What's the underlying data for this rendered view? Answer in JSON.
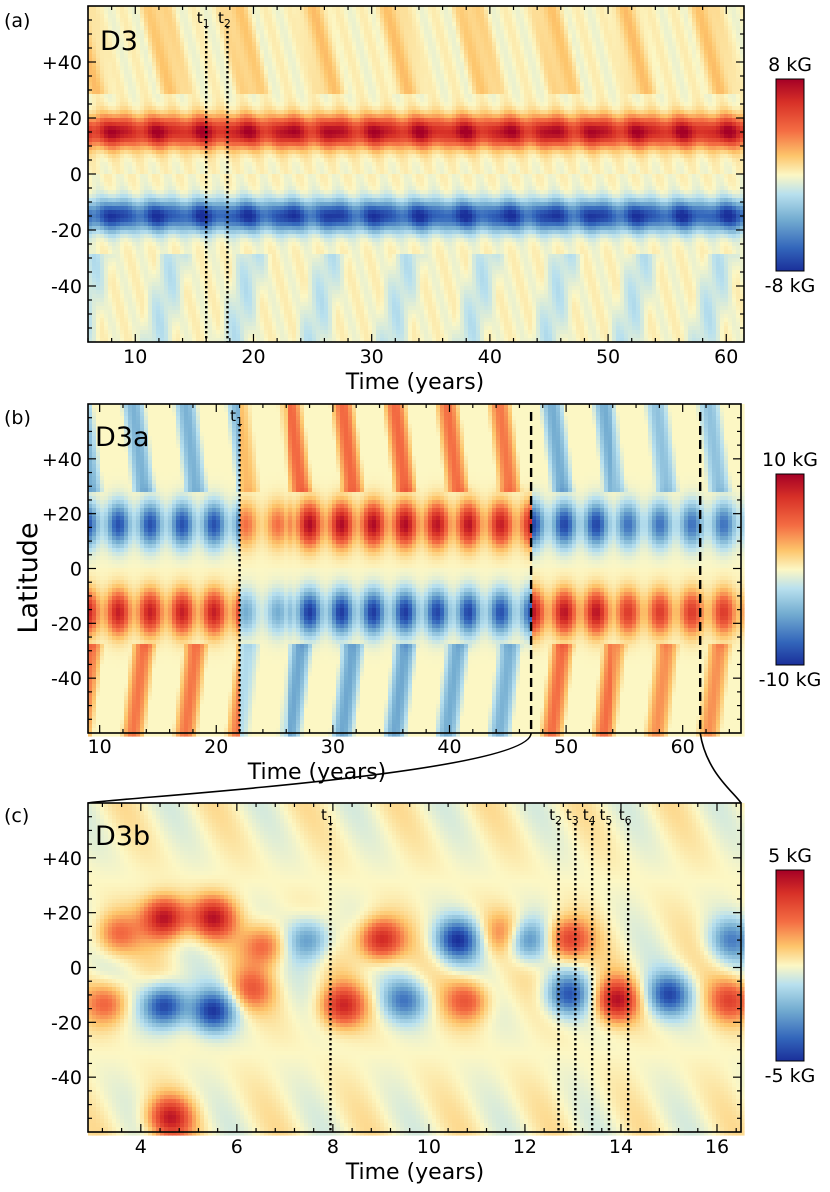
{
  "figure": {
    "ylabel": "Latitude"
  },
  "chart_data": [
    {
      "type": "heatmap",
      "panel_label": "(a)",
      "title": "D3",
      "xlabel": "Time (years)",
      "ylabel": "Latitude",
      "xlim": [
        6,
        61.5
      ],
      "ylim": [
        -60,
        60
      ],
      "xticks": [
        10,
        20,
        30,
        40,
        50,
        60
      ],
      "xtick_labels": [
        "10",
        "20",
        "30",
        "40",
        "50",
        "60"
      ],
      "yticks": [
        40,
        20,
        0,
        -20,
        -40
      ],
      "ytick_labels": [
        "+40",
        "+20",
        "0",
        "-20",
        "-40"
      ],
      "colorbar": {
        "max_label": "8 kG",
        "min_label": "-8 kG",
        "max": 8,
        "min": -8,
        "unit": "kG",
        "colormap": "blue-white-red"
      },
      "markers": [
        {
          "label": "t1",
          "base": "t",
          "sub": "1",
          "x": 16.0,
          "style": "dotted"
        },
        {
          "label": "t2",
          "base": "t",
          "sub": "2",
          "x": 17.8,
          "style": "dotted"
        }
      ],
      "field_summary": "steady strong positive band near +15 latitude, steady strong negative band near -15 latitude, weak high-latitude streaks"
    },
    {
      "type": "heatmap",
      "panel_label": "(b)",
      "title": "D3a",
      "xlabel": "Time (years)",
      "ylabel": "Latitude",
      "xlim": [
        9,
        65
      ],
      "ylim": [
        -60,
        60
      ],
      "xticks": [
        10,
        20,
        30,
        40,
        50,
        60
      ],
      "xtick_labels": [
        "10",
        "20",
        "30",
        "40",
        "50",
        "60"
      ],
      "yticks": [
        40,
        20,
        0,
        -20,
        -40
      ],
      "ytick_labels": [
        "+40",
        "+20",
        "0",
        "-20",
        "-40"
      ],
      "colorbar": {
        "max_label": "10 kG",
        "min_label": "-10 kG",
        "max": 10,
        "min": -10,
        "unit": "kG",
        "colormap": "blue-white-red"
      },
      "markers": [
        {
          "label": "t1",
          "base": "t",
          "sub": "1",
          "x": 22.0,
          "style": "dotted"
        },
        {
          "label": "",
          "base": "",
          "sub": "",
          "x": 47.0,
          "style": "dashed"
        },
        {
          "label": "",
          "base": "",
          "sub": "",
          "x": 61.5,
          "style": "dashed"
        }
      ],
      "polarity_segments": [
        {
          "x0": 9,
          "x1": 22,
          "north_sign": -1,
          "strength": 0.85
        },
        {
          "x0": 22,
          "x1": 26,
          "north_sign": 1,
          "strength": 0.45
        },
        {
          "x0": 26,
          "x1": 37.5,
          "north_sign": 1,
          "strength": 0.95
        },
        {
          "x0": 37.5,
          "x1": 42,
          "north_sign": 1,
          "strength": 0.9
        },
        {
          "x0": 42,
          "x1": 47,
          "north_sign": 1,
          "strength": 0.85
        },
        {
          "x0": 47,
          "x1": 54,
          "north_sign": -1,
          "strength": 0.9
        },
        {
          "x0": 54,
          "x1": 65,
          "north_sign": -1,
          "strength": 0.7
        }
      ]
    },
    {
      "type": "heatmap",
      "panel_label": "(c)",
      "title": "D3b",
      "xlabel": "Time (years)",
      "ylabel": "Latitude",
      "xlim": [
        2.9,
        16.5
      ],
      "ylim": [
        -60,
        60
      ],
      "xticks": [
        4,
        6,
        8,
        10,
        12,
        14,
        16
      ],
      "xtick_labels": [
        "4",
        "6",
        "8",
        "10",
        "12",
        "14",
        "16"
      ],
      "yticks": [
        40,
        20,
        0,
        -20,
        -40
      ],
      "ytick_labels": [
        "+40",
        "+20",
        "0",
        "-20",
        "-40"
      ],
      "colorbar": {
        "max_label": "5 kG",
        "min_label": "-5 kG",
        "max": 5,
        "min": -5,
        "unit": "kG",
        "colormap": "blue-white-red"
      },
      "markers": [
        {
          "label": "t1",
          "base": "t",
          "sub": "1",
          "x": 7.95,
          "style": "dotted"
        },
        {
          "label": "t2",
          "base": "t",
          "sub": "2",
          "x": 12.7,
          "style": "dotted"
        },
        {
          "label": "t3",
          "base": "t",
          "sub": "3",
          "x": 13.05,
          "style": "dotted"
        },
        {
          "label": "t4",
          "base": "t",
          "sub": "4",
          "x": 13.4,
          "style": "dotted"
        },
        {
          "label": "t5",
          "base": "t",
          "sub": "5",
          "x": 13.75,
          "style": "dotted"
        },
        {
          "label": "t6",
          "base": "t",
          "sub": "6",
          "x": 14.15,
          "style": "dotted"
        }
      ],
      "features": [
        {
          "t": 4.5,
          "lat": 18,
          "amp": 0.95
        },
        {
          "t": 5.5,
          "lat": 18,
          "amp": 0.85
        },
        {
          "t": 3.5,
          "lat": 12,
          "amp": 0.45
        },
        {
          "t": 4.5,
          "lat": -14,
          "amp": -0.95
        },
        {
          "t": 5.5,
          "lat": -16,
          "amp": -0.9
        },
        {
          "t": 3.3,
          "lat": -13,
          "amp": 0.5
        },
        {
          "t": 6.6,
          "lat": 8,
          "amp": 0.5
        },
        {
          "t": 6.3,
          "lat": -8,
          "amp": 0.45
        },
        {
          "t": 7.5,
          "lat": 10,
          "amp": -0.55
        },
        {
          "t": 8.2,
          "lat": -14,
          "amp": 0.75
        },
        {
          "t": 9.0,
          "lat": 10,
          "amp": 0.85
        },
        {
          "t": 9.5,
          "lat": -12,
          "amp": -0.6
        },
        {
          "t": 10.6,
          "lat": 10,
          "amp": -0.9
        },
        {
          "t": 10.8,
          "lat": -12,
          "amp": 0.55
        },
        {
          "t": 11.6,
          "lat": 12,
          "amp": 0.45
        },
        {
          "t": 12.0,
          "lat": 10,
          "amp": -0.7
        },
        {
          "t": 12.9,
          "lat": 10,
          "amp": 0.7
        },
        {
          "t": 12.9,
          "lat": -10,
          "amp": -0.75
        },
        {
          "t": 13.9,
          "lat": -12,
          "amp": 0.85
        },
        {
          "t": 15.0,
          "lat": -10,
          "amp": -0.8
        },
        {
          "t": 16.3,
          "lat": 10,
          "amp": -0.55
        },
        {
          "t": 16.3,
          "lat": -12,
          "amp": 0.6
        },
        {
          "t": 4.6,
          "lat": -55,
          "amp": 0.8
        }
      ]
    }
  ]
}
